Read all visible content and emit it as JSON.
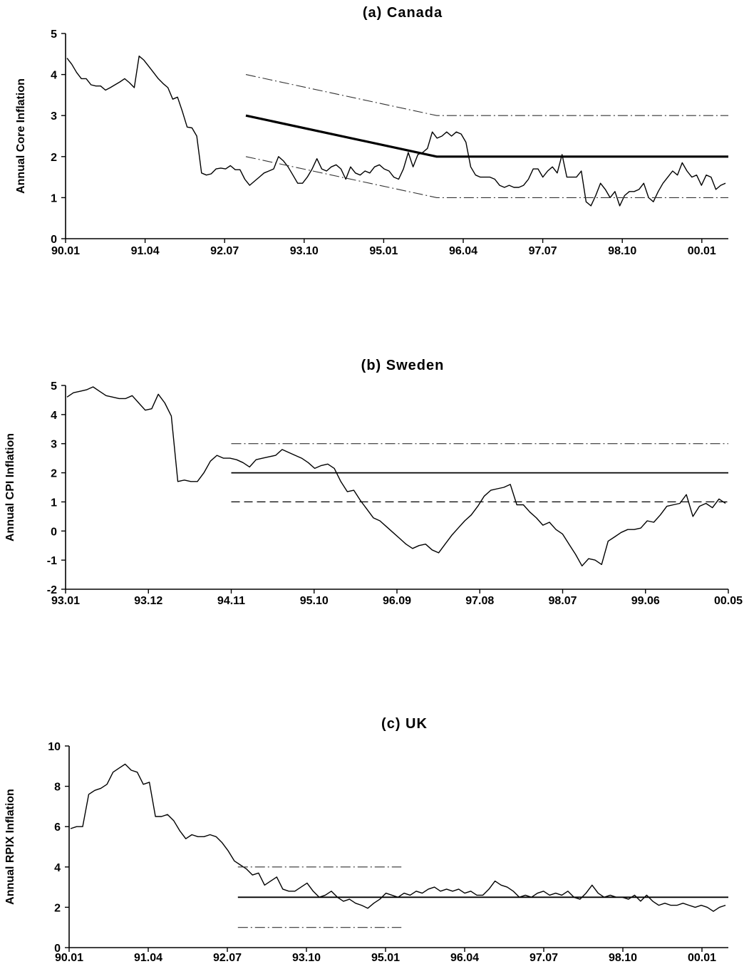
{
  "chart_data": [
    {
      "type": "line",
      "title": "(a) Canada",
      "xlabel": "",
      "ylabel": "Annual Core Inflation",
      "x_tick_labels": [
        "90.01",
        "91.04",
        "92.07",
        "93.10",
        "95.01",
        "96.04",
        "97.07",
        "98.10",
        "00.01"
      ],
      "y_tick_labels": [
        "0",
        "1",
        "2",
        "3",
        "4",
        "5"
      ],
      "ylim": [
        0,
        5
      ],
      "grid": false,
      "series": [
        {
          "style": "solid",
          "values": [
            4.4,
            4.25,
            4.05,
            3.9,
            3.9,
            3.75,
            3.72,
            3.72,
            3.62,
            3.68,
            3.75,
            3.82,
            3.9,
            3.8,
            3.68,
            4.45,
            4.35,
            4.2,
            4.05,
            3.9,
            3.78,
            3.68,
            3.4,
            3.45,
            3.1,
            2.72,
            2.7,
            2.5,
            1.6,
            1.55,
            1.58,
            1.7,
            1.72,
            1.7,
            1.78,
            1.68,
            1.68,
            1.45,
            1.3,
            1.4,
            1.5,
            1.6,
            1.65,
            1.7,
            2.0,
            1.9,
            1.75,
            1.55,
            1.35,
            1.35,
            1.5,
            1.7,
            1.95,
            1.7,
            1.65,
            1.75,
            1.8,
            1.7,
            1.45,
            1.75,
            1.6,
            1.55,
            1.65,
            1.6,
            1.75,
            1.8,
            1.7,
            1.65,
            1.5,
            1.45,
            1.7,
            2.1,
            1.75,
            2.05,
            2.1,
            2.2,
            2.6,
            2.45,
            2.5,
            2.6,
            2.5,
            2.6,
            2.55,
            2.35,
            1.75,
            1.55,
            1.5,
            1.5,
            1.5,
            1.45,
            1.3,
            1.25,
            1.3,
            1.25,
            1.25,
            1.3,
            1.45,
            1.7,
            1.7,
            1.5,
            1.65,
            1.75,
            1.6,
            2.05,
            1.5,
            1.5,
            1.5,
            1.65,
            0.9,
            0.8,
            1.05,
            1.35,
            1.2,
            1.0,
            1.15,
            0.8,
            1.05,
            1.15,
            1.15,
            1.2,
            1.35,
            1.0,
            0.9,
            1.15,
            1.35,
            1.5,
            1.65,
            1.55,
            1.85,
            1.65,
            1.5,
            1.55,
            1.3,
            1.55,
            1.5,
            1.2,
            1.3,
            1.35
          ]
        },
        {
          "style": "bold",
          "name": "",
          "x": [
            "92.11",
            "95.11",
            "00.06"
          ],
          "values": [
            3.0,
            2.0,
            2.0
          ]
        },
        {
          "style": "dash-dot",
          "x": [
            "92.11",
            "95.11",
            "00.06"
          ],
          "values": [
            4.0,
            3.0,
            3.0
          ]
        },
        {
          "style": "dash-dot",
          "x": [
            "92.11",
            "95.11",
            "00.06"
          ],
          "values": [
            2.0,
            1.0,
            1.0
          ]
        }
      ]
    },
    {
      "type": "line",
      "title": "(b) Sweden",
      "xlabel": "",
      "ylabel": "Annual CPI Inflation",
      "x_tick_labels": [
        "93.01",
        "93.12",
        "94.11",
        "95.10",
        "96.09",
        "97.08",
        "98.07",
        "99.06",
        "00.05"
      ],
      "y_tick_labels": [
        "-2",
        "-1",
        "0",
        "1",
        "2",
        "3",
        "4",
        "5"
      ],
      "ylim": [
        -2,
        5
      ],
      "grid": false,
      "series": [
        {
          "style": "solid",
          "values": [
            4.6,
            4.75,
            4.8,
            4.85,
            4.95,
            4.8,
            4.65,
            4.6,
            4.55,
            4.55,
            4.65,
            4.4,
            4.15,
            4.2,
            4.7,
            4.4,
            3.95,
            1.7,
            1.75,
            1.7,
            1.7,
            2.0,
            2.4,
            2.6,
            2.5,
            2.5,
            2.45,
            2.35,
            2.2,
            2.45,
            2.5,
            2.55,
            2.6,
            2.8,
            2.7,
            2.6,
            2.5,
            2.35,
            2.15,
            2.25,
            2.3,
            2.15,
            1.7,
            1.35,
            1.4,
            1.05,
            0.75,
            0.45,
            0.35,
            0.15,
            -0.05,
            -0.25,
            -0.45,
            -0.6,
            -0.5,
            -0.45,
            -0.65,
            -0.75,
            -0.45,
            -0.15,
            0.1,
            0.35,
            0.55,
            0.85,
            1.2,
            1.4,
            1.45,
            1.5,
            1.6,
            0.9,
            0.9,
            0.65,
            0.45,
            0.2,
            0.3,
            0.05,
            -0.1,
            -0.45,
            -0.8,
            -1.2,
            -0.95,
            -1.0,
            -1.15,
            -0.35,
            -0.2,
            -0.05,
            0.05,
            0.05,
            0.1,
            0.35,
            0.3,
            0.55,
            0.85,
            0.9,
            0.95,
            1.25,
            0.5,
            0.85,
            0.95,
            0.8,
            1.1,
            0.95
          ]
        },
        {
          "style": "solid",
          "x": [
            "94.11",
            "00.05"
          ],
          "values": [
            2.0,
            2.0
          ]
        },
        {
          "style": "dash-dot",
          "x": [
            "94.11",
            "00.05"
          ],
          "values": [
            3.0,
            3.0
          ]
        },
        {
          "style": "dashed",
          "x": [
            "94.11",
            "00.05"
          ],
          "values": [
            1.0,
            1.0
          ]
        }
      ]
    },
    {
      "type": "line",
      "title": "(c) UK",
      "xlabel": "",
      "ylabel": "Annual RPIX Inflation",
      "x_tick_labels": [
        "90.01",
        "91.04",
        "92.07",
        "93.10",
        "95.01",
        "96.04",
        "97.07",
        "98.10",
        "00.01"
      ],
      "y_tick_labels": [
        "0",
        "2",
        "4",
        "6",
        "8",
        "10"
      ],
      "ylim": [
        0,
        10
      ],
      "grid": false,
      "series": [
        {
          "style": "solid",
          "values": [
            5.9,
            6.0,
            6.0,
            7.6,
            7.8,
            7.9,
            8.1,
            8.7,
            8.9,
            9.1,
            8.8,
            8.7,
            8.1,
            8.2,
            6.5,
            6.5,
            6.6,
            6.3,
            5.8,
            5.4,
            5.6,
            5.5,
            5.5,
            5.6,
            5.5,
            5.2,
            4.8,
            4.3,
            4.1,
            3.9,
            3.6,
            3.7,
            3.1,
            3.3,
            3.5,
            2.9,
            2.8,
            2.8,
            3.0,
            3.2,
            2.8,
            2.5,
            2.6,
            2.8,
            2.5,
            2.3,
            2.4,
            2.2,
            2.1,
            1.95,
            2.2,
            2.4,
            2.7,
            2.6,
            2.5,
            2.7,
            2.6,
            2.8,
            2.7,
            2.9,
            3.0,
            2.8,
            2.9,
            2.8,
            2.9,
            2.7,
            2.8,
            2.6,
            2.6,
            2.9,
            3.3,
            3.1,
            3.0,
            2.8,
            2.5,
            2.6,
            2.5,
            2.7,
            2.8,
            2.6,
            2.7,
            2.6,
            2.8,
            2.5,
            2.4,
            2.7,
            3.1,
            2.7,
            2.5,
            2.6,
            2.5,
            2.5,
            2.4,
            2.6,
            2.3,
            2.6,
            2.3,
            2.1,
            2.2,
            2.1,
            2.1,
            2.2,
            2.1,
            2.0,
            2.1,
            2.0,
            1.8,
            2.0,
            2.1
          ]
        },
        {
          "style": "solid",
          "x": [
            "92.09",
            "00.06"
          ],
          "values": [
            2.5,
            2.5
          ]
        },
        {
          "style": "dash-dot",
          "x": [
            "92.09",
            "95.04"
          ],
          "values": [
            4.0,
            4.0
          ]
        },
        {
          "style": "dash-dot",
          "x": [
            "92.09",
            "95.04"
          ],
          "values": [
            1.0,
            1.0
          ]
        }
      ]
    }
  ]
}
